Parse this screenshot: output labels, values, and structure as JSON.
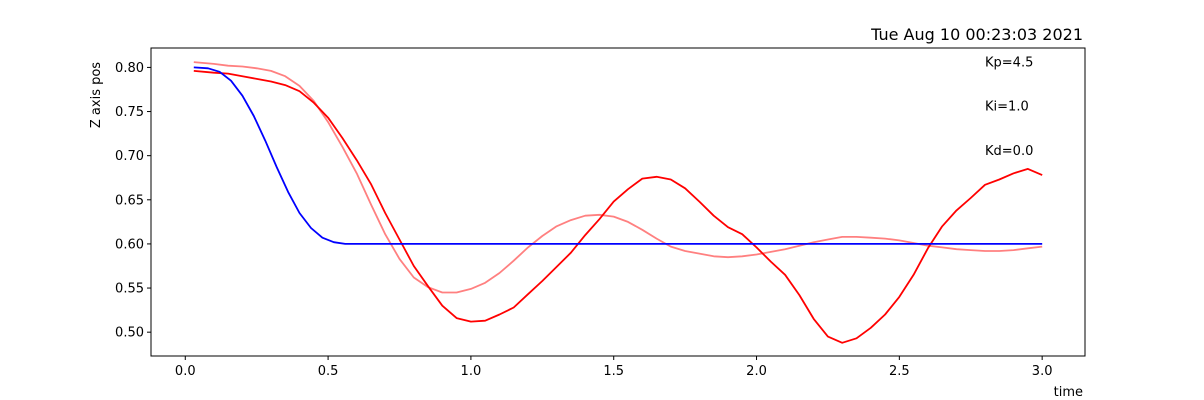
{
  "chart_data": {
    "type": "line",
    "timestamp": "Tue Aug 10 00:23:03 2021",
    "xlabel": "time",
    "ylabel": "Z axis pos",
    "xlim": [
      -0.12,
      3.15
    ],
    "ylim": [
      0.473,
      0.822
    ],
    "xticks": [
      {
        "value": 0.0,
        "label": "0.0"
      },
      {
        "value": 0.5,
        "label": "0.5"
      },
      {
        "value": 1.0,
        "label": "1.0"
      },
      {
        "value": 1.5,
        "label": "1.5"
      },
      {
        "value": 2.0,
        "label": "2.0"
      },
      {
        "value": 2.5,
        "label": "2.5"
      },
      {
        "value": 3.0,
        "label": "3.0"
      }
    ],
    "yticks": [
      {
        "value": 0.5,
        "label": "0.50"
      },
      {
        "value": 0.55,
        "label": "0.55"
      },
      {
        "value": 0.6,
        "label": "0.60"
      },
      {
        "value": 0.65,
        "label": "0.65"
      },
      {
        "value": 0.7,
        "label": "0.70"
      },
      {
        "value": 0.75,
        "label": "0.75"
      },
      {
        "value": 0.8,
        "label": "0.80"
      }
    ],
    "grid": false,
    "annotations": [
      {
        "text": "Kp=4.5",
        "x": 2.8,
        "y": 0.801
      },
      {
        "text": "Ki=1.0",
        "x": 2.8,
        "y": 0.751
      },
      {
        "text": "Kd=0.0",
        "x": 2.8,
        "y": 0.701
      }
    ],
    "series": [
      {
        "color": "#ff8080",
        "x": [
          0.03,
          0.1,
          0.15,
          0.2,
          0.25,
          0.3,
          0.35,
          0.4,
          0.45,
          0.5,
          0.55,
          0.6,
          0.65,
          0.7,
          0.75,
          0.8,
          0.85,
          0.9,
          0.95,
          1.0,
          1.05,
          1.1,
          1.15,
          1.2,
          1.25,
          1.3,
          1.35,
          1.4,
          1.45,
          1.5,
          1.55,
          1.6,
          1.65,
          1.7,
          1.75,
          1.8,
          1.85,
          1.9,
          1.95,
          2.0,
          2.05,
          2.1,
          2.15,
          2.2,
          2.25,
          2.3,
          2.35,
          2.4,
          2.45,
          2.5,
          2.55,
          2.6,
          2.65,
          2.7,
          2.75,
          2.8,
          2.85,
          2.9,
          2.95,
          3.0
        ],
        "y": [
          0.806,
          0.804,
          0.802,
          0.801,
          0.799,
          0.796,
          0.79,
          0.779,
          0.762,
          0.738,
          0.71,
          0.68,
          0.645,
          0.611,
          0.583,
          0.562,
          0.551,
          0.545,
          0.545,
          0.549,
          0.556,
          0.567,
          0.581,
          0.596,
          0.609,
          0.62,
          0.627,
          0.632,
          0.633,
          0.631,
          0.625,
          0.616,
          0.606,
          0.597,
          0.592,
          0.589,
          0.586,
          0.585,
          0.586,
          0.588,
          0.591,
          0.594,
          0.598,
          0.602,
          0.605,
          0.608,
          0.608,
          0.607,
          0.606,
          0.604,
          0.601,
          0.598,
          0.596,
          0.594,
          0.593,
          0.592,
          0.592,
          0.593,
          0.595,
          0.597
        ]
      },
      {
        "color": "#ff0000",
        "x": [
          0.03,
          0.1,
          0.15,
          0.2,
          0.25,
          0.3,
          0.35,
          0.4,
          0.45,
          0.5,
          0.55,
          0.6,
          0.65,
          0.7,
          0.75,
          0.8,
          0.85,
          0.9,
          0.95,
          1.0,
          1.05,
          1.1,
          1.15,
          1.2,
          1.25,
          1.3,
          1.35,
          1.4,
          1.45,
          1.5,
          1.55,
          1.6,
          1.65,
          1.7,
          1.75,
          1.8,
          1.85,
          1.9,
          1.95,
          2.0,
          2.05,
          2.1,
          2.15,
          2.2,
          2.25,
          2.3,
          2.35,
          2.4,
          2.45,
          2.5,
          2.55,
          2.6,
          2.65,
          2.7,
          2.75,
          2.8,
          2.85,
          2.9,
          2.95,
          3.0
        ],
        "y": [
          0.796,
          0.794,
          0.793,
          0.79,
          0.787,
          0.784,
          0.78,
          0.773,
          0.76,
          0.743,
          0.72,
          0.695,
          0.668,
          0.635,
          0.605,
          0.575,
          0.552,
          0.53,
          0.516,
          0.512,
          0.513,
          0.52,
          0.528,
          0.543,
          0.558,
          0.574,
          0.59,
          0.61,
          0.628,
          0.648,
          0.662,
          0.674,
          0.676,
          0.673,
          0.663,
          0.648,
          0.632,
          0.619,
          0.611,
          0.596,
          0.58,
          0.565,
          0.542,
          0.515,
          0.495,
          0.488,
          0.493,
          0.505,
          0.52,
          0.54,
          0.565,
          0.595,
          0.62,
          0.638,
          0.652,
          0.667,
          0.673,
          0.68,
          0.685,
          0.678
        ]
      },
      {
        "color": "#0000ff",
        "x": [
          0.03,
          0.08,
          0.12,
          0.16,
          0.2,
          0.24,
          0.28,
          0.32,
          0.36,
          0.4,
          0.44,
          0.48,
          0.52,
          0.56,
          0.6,
          0.8,
          1.0,
          1.5,
          2.0,
          2.5,
          3.0
        ],
        "y": [
          0.8,
          0.799,
          0.795,
          0.785,
          0.768,
          0.745,
          0.717,
          0.687,
          0.659,
          0.635,
          0.618,
          0.607,
          0.602,
          0.6,
          0.6,
          0.6,
          0.6,
          0.6,
          0.6,
          0.6,
          0.6
        ]
      }
    ]
  }
}
